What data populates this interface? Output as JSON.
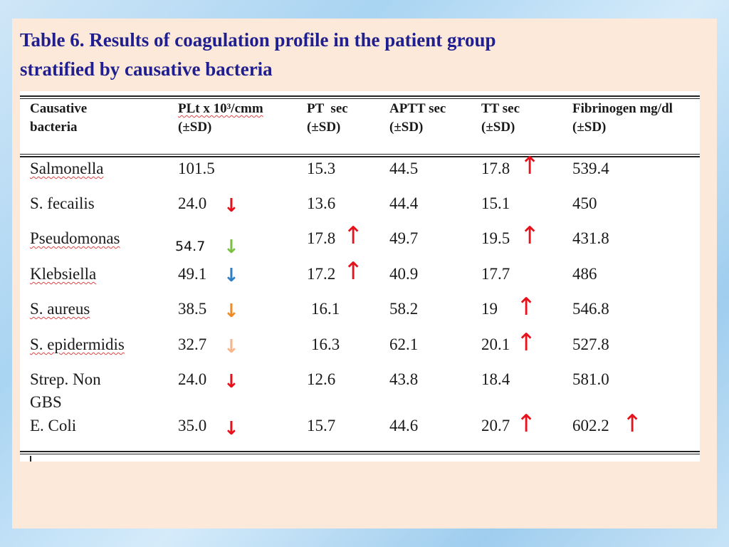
{
  "title_line1": "Table 6. Results of coagulation profile in the patient group",
  "title_line2": "stratified by causative bacteria",
  "headers": {
    "bacteria": [
      "Causative",
      "bacteria"
    ],
    "plt": [
      "PLt x 10³/cmm",
      "(±SD)"
    ],
    "pt": [
      "PT  sec",
      "(±SD)"
    ],
    "aptt": [
      "APTT sec",
      "(±SD)"
    ],
    "tt": [
      "TT sec",
      "(±SD)"
    ],
    "fib": [
      "Fibrinogen mg/dl",
      "(±SD)"
    ]
  },
  "rows": [
    {
      "bacteria": "Salmonella",
      "plt": "101.5",
      "pt": "15.3",
      "aptt": "44.5",
      "tt": "17.8",
      "fib": "539.4"
    },
    {
      "bacteria": "S. fecailis",
      "plt": "24.0",
      "pt": "13.6",
      "aptt": "44.4",
      "tt": "15.1",
      "fib": "450"
    },
    {
      "bacteria": "Pseudomonas",
      "plt": "54.7",
      "pt": "17.8",
      "aptt": "49.7",
      "tt": "19.5",
      "fib": "431.8"
    },
    {
      "bacteria": "Klebsiella",
      "plt": "49.1",
      "pt": "17.2",
      "aptt": "40.9",
      "tt": "17.7",
      "fib": "486"
    },
    {
      "bacteria": "S. aureus",
      "plt": "38.5",
      "pt": "16.1",
      "aptt": "58.2",
      "tt": "19",
      "fib": "546.8"
    },
    {
      "bacteria": "S. epidermidis",
      "plt": "32.7",
      "pt": "16.3",
      "aptt": "62.1",
      "tt": "20.1",
      "fib": "527.8"
    },
    {
      "bacteria": "Strep. Non",
      "bacteria2": "GBS",
      "plt": "24.0",
      "pt": "12.6",
      "aptt": "43.8",
      "tt": "18.4",
      "fib": "581.0"
    },
    {
      "bacteria": "E. Coli",
      "plt": "35.0",
      "pt": "15.7",
      "aptt": "44.6",
      "tt": "20.7",
      "fib": "602.2"
    }
  ],
  "arrow_colors": {
    "red": "#e8101a",
    "green": "#7ac142",
    "blue": "#2e7fc6",
    "orange": "#f08a24",
    "peach": "#f6b58a"
  },
  "arrows_down": [
    {
      "row": 1,
      "color": "red"
    },
    {
      "row": 2,
      "color": "green"
    },
    {
      "row": 3,
      "color": "blue"
    },
    {
      "row": 4,
      "color": "orange"
    },
    {
      "row": 5,
      "color": "peach"
    },
    {
      "row": 6,
      "color": "red"
    },
    {
      "row": 7,
      "color": "red"
    }
  ],
  "arrows_up_pt": [
    2,
    3
  ],
  "arrows_up_tt": [
    0,
    2,
    4,
    5,
    7
  ],
  "arrows_up_fib": [
    7
  ]
}
